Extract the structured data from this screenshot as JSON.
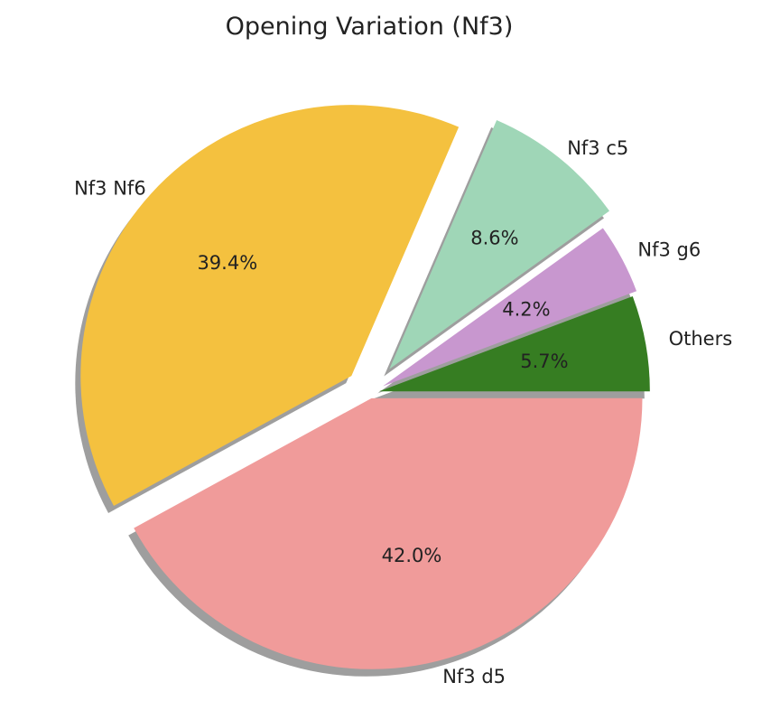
{
  "chart_data": {
    "type": "pie",
    "title": "Opening Variation (Nf3)",
    "slices": [
      {
        "label": "Others",
        "value": 5.7,
        "pct_label": "5.7%",
        "color": "#367d22",
        "explode": 0.0
      },
      {
        "label": "Nf3 g6",
        "value": 4.2,
        "pct_label": "4.2%",
        "color": "#c897cf",
        "explode": 0.0
      },
      {
        "label": "Nf3 c5",
        "value": 8.6,
        "pct_label": "8.6%",
        "color": "#9fd6b7",
        "explode": 0.0
      },
      {
        "label": "Nf3 Nf6",
        "value": 39.4,
        "pct_label": "39.4%",
        "color": "#f4c13f",
        "explode": 0.0
      },
      {
        "label": "Nf3 d5",
        "value": 42.0,
        "pct_label": "42.0%",
        "color": "#f09b9a",
        "explode": 0.0
      }
    ],
    "start_angle_deg": 0,
    "direction": "counterclockwise",
    "shadow": true,
    "legend": "none"
  }
}
